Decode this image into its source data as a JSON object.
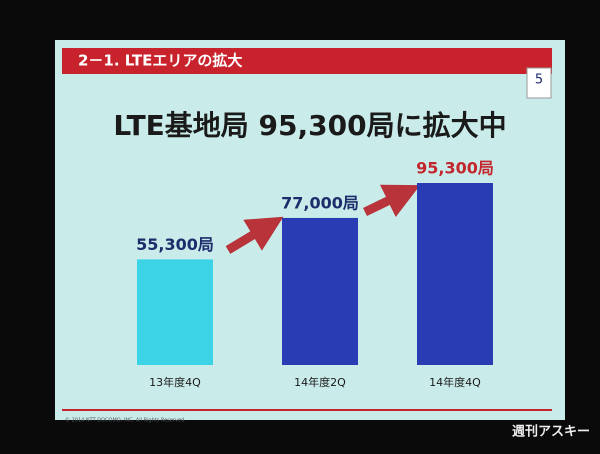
{
  "header": {
    "section": "2－1. LTEエリアの拡大",
    "page_number": "5"
  },
  "chart_data": {
    "type": "bar",
    "title": "LTE基地局 95,300局に拡大中",
    "categories": [
      "13年度4Q",
      "14年度2Q",
      "14年度4Q"
    ],
    "values": [
      55300,
      77000,
      95300
    ],
    "value_labels": [
      "55,300局",
      "77,000局",
      "95,300局"
    ],
    "colors": [
      "#3dd3e6",
      "#2a3cb4",
      "#2a3cb4"
    ]
  },
  "footer": {
    "copyright": "© 2014 NTT DOCOMO, INC. All Rights Reserved.",
    "watermark": "週刊アスキー"
  }
}
